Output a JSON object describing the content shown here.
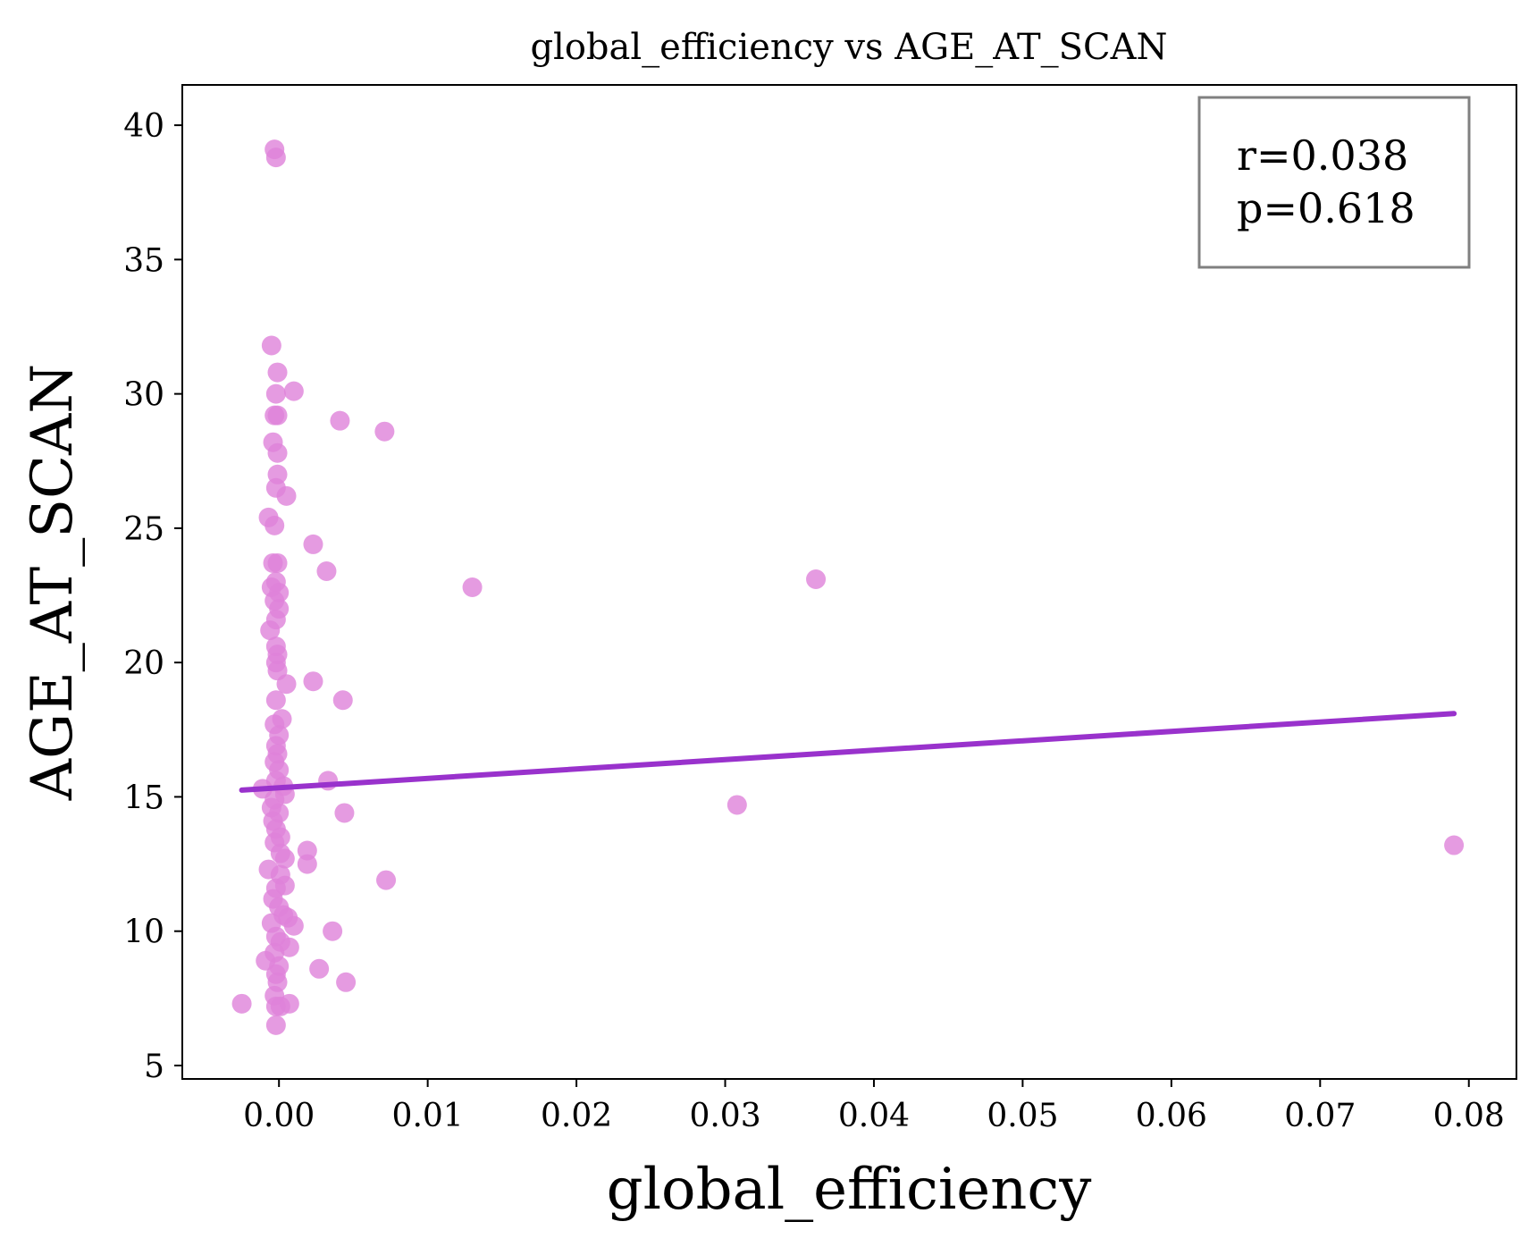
{
  "chart_data": {
    "type": "scatter",
    "title": "global_efficiency vs AGE_AT_SCAN",
    "xlabel": "global_efficiency",
    "ylabel": "AGE_AT_SCAN",
    "xlim": [
      -0.0065,
      0.0832
    ],
    "ylim": [
      4.5,
      41.5
    ],
    "xticks": [
      0.0,
      0.01,
      0.02,
      0.03,
      0.04,
      0.05,
      0.06,
      0.07,
      0.08
    ],
    "xtick_labels": [
      "0.00",
      "0.01",
      "0.02",
      "0.03",
      "0.04",
      "0.05",
      "0.06",
      "0.07",
      "0.08"
    ],
    "yticks": [
      5,
      10,
      15,
      20,
      25,
      30,
      35,
      40
    ],
    "ytick_labels": [
      "5",
      "10",
      "15",
      "20",
      "25",
      "30",
      "35",
      "40"
    ],
    "grid": false,
    "point_color": "#df82da",
    "line_color": "#9932cc",
    "stats_color": "#808080",
    "annotation": {
      "r_text": "r=0.038",
      "p_text": "p=0.618"
    },
    "regression_line": {
      "x": [
        -0.0025,
        0.079
      ],
      "y": [
        15.25,
        18.1
      ]
    },
    "points": [
      {
        "x": -0.0003,
        "y": 39.1
      },
      {
        "x": -0.0002,
        "y": 38.8
      },
      {
        "x": -0.0005,
        "y": 31.8
      },
      {
        "x": -0.0001,
        "y": 30.8
      },
      {
        "x": 0.001,
        "y": 30.1
      },
      {
        "x": -0.0002,
        "y": 30.0
      },
      {
        "x": -0.0003,
        "y": 29.2
      },
      {
        "x": -0.0001,
        "y": 29.2
      },
      {
        "x": 0.0041,
        "y": 29.0
      },
      {
        "x": 0.0071,
        "y": 28.6
      },
      {
        "x": -0.0004,
        "y": 28.2
      },
      {
        "x": -0.0001,
        "y": 27.8
      },
      {
        "x": -0.0001,
        "y": 27.0
      },
      {
        "x": -0.0002,
        "y": 26.5
      },
      {
        "x": 0.0005,
        "y": 26.2
      },
      {
        "x": -0.0007,
        "y": 25.4
      },
      {
        "x": -0.0003,
        "y": 25.1
      },
      {
        "x": 0.0023,
        "y": 24.4
      },
      {
        "x": 0.0032,
        "y": 23.4
      },
      {
        "x": -0.0004,
        "y": 23.7
      },
      {
        "x": -0.0001,
        "y": 23.7
      },
      {
        "x": 0.013,
        "y": 22.8
      },
      {
        "x": 0.0361,
        "y": 23.1
      },
      {
        "x": -0.0002,
        "y": 23.0
      },
      {
        "x": -0.0005,
        "y": 22.8
      },
      {
        "x": 0.0,
        "y": 22.6
      },
      {
        "x": -0.0003,
        "y": 22.3
      },
      {
        "x": 0.0,
        "y": 22.0
      },
      {
        "x": -0.0002,
        "y": 21.6
      },
      {
        "x": -0.0006,
        "y": 21.2
      },
      {
        "x": -0.0002,
        "y": 20.6
      },
      {
        "x": -0.0001,
        "y": 20.3
      },
      {
        "x": -0.0002,
        "y": 20.0
      },
      {
        "x": -0.0001,
        "y": 19.7
      },
      {
        "x": 0.0005,
        "y": 19.2
      },
      {
        "x": 0.0023,
        "y": 19.3
      },
      {
        "x": 0.0043,
        "y": 18.6
      },
      {
        "x": -0.0002,
        "y": 18.6
      },
      {
        "x": 0.0002,
        "y": 17.9
      },
      {
        "x": -0.0003,
        "y": 17.7
      },
      {
        "x": 0.0,
        "y": 17.3
      },
      {
        "x": -0.0002,
        "y": 16.9
      },
      {
        "x": -0.0001,
        "y": 16.6
      },
      {
        "x": -0.0003,
        "y": 16.3
      },
      {
        "x": 0.0,
        "y": 16.0
      },
      {
        "x": -0.0002,
        "y": 15.6
      },
      {
        "x": 0.0033,
        "y": 15.6
      },
      {
        "x": 0.0003,
        "y": 15.4
      },
      {
        "x": -0.0011,
        "y": 15.3
      },
      {
        "x": 0.0004,
        "y": 15.1
      },
      {
        "x": -0.0003,
        "y": 14.9
      },
      {
        "x": -0.0005,
        "y": 14.6
      },
      {
        "x": 0.0,
        "y": 14.4
      },
      {
        "x": 0.0044,
        "y": 14.4
      },
      {
        "x": 0.0308,
        "y": 14.7
      },
      {
        "x": -0.0004,
        "y": 14.1
      },
      {
        "x": -0.0002,
        "y": 13.8
      },
      {
        "x": 0.0001,
        "y": 13.5
      },
      {
        "x": -0.0003,
        "y": 13.3
      },
      {
        "x": 0.0019,
        "y": 13.0
      },
      {
        "x": 0.0001,
        "y": 12.9
      },
      {
        "x": 0.0004,
        "y": 12.7
      },
      {
        "x": 0.0019,
        "y": 12.5
      },
      {
        "x": -0.0007,
        "y": 12.3
      },
      {
        "x": 0.0001,
        "y": 12.1
      },
      {
        "x": 0.0072,
        "y": 11.9
      },
      {
        "x": 0.0004,
        "y": 11.7
      },
      {
        "x": -0.0002,
        "y": 11.6
      },
      {
        "x": -0.0004,
        "y": 11.2
      },
      {
        "x": 0.0,
        "y": 10.9
      },
      {
        "x": 0.0003,
        "y": 10.6
      },
      {
        "x": 0.0006,
        "y": 10.5
      },
      {
        "x": -0.0005,
        "y": 10.3
      },
      {
        "x": 0.001,
        "y": 10.2
      },
      {
        "x": 0.0036,
        "y": 10.0
      },
      {
        "x": -0.0002,
        "y": 9.8
      },
      {
        "x": 0.0001,
        "y": 9.6
      },
      {
        "x": 0.0007,
        "y": 9.4
      },
      {
        "x": -0.0003,
        "y": 9.2
      },
      {
        "x": -0.0009,
        "y": 8.9
      },
      {
        "x": 0.0,
        "y": 8.7
      },
      {
        "x": 0.0027,
        "y": 8.6
      },
      {
        "x": -0.0002,
        "y": 8.4
      },
      {
        "x": -0.0001,
        "y": 8.1
      },
      {
        "x": 0.0045,
        "y": 8.1
      },
      {
        "x": -0.0003,
        "y": 7.6
      },
      {
        "x": -0.0025,
        "y": 7.3
      },
      {
        "x": -0.0002,
        "y": 7.2
      },
      {
        "x": 0.0001,
        "y": 7.2
      },
      {
        "x": 0.0007,
        "y": 7.3
      },
      {
        "x": -0.0002,
        "y": 6.5
      },
      {
        "x": 0.079,
        "y": 13.2
      }
    ]
  }
}
